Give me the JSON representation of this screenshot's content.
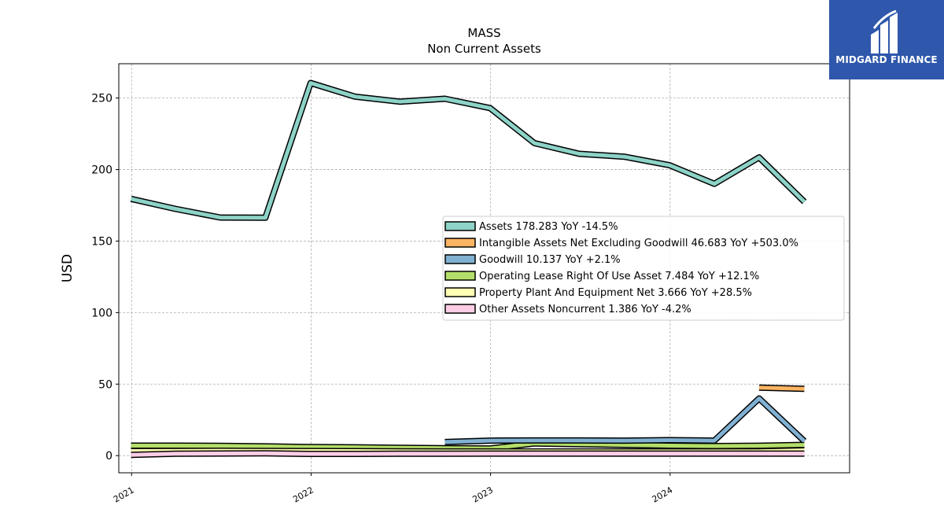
{
  "chart_data": {
    "type": "line",
    "title": "MASS",
    "subtitle": "Non Current  Assets",
    "ylabel": "USD",
    "xlabel": "",
    "ylim": [
      -12,
      274
    ],
    "xlim": [
      "2020-12-06",
      "2024-12-31"
    ],
    "y_ticks": [
      0,
      50,
      100,
      150,
      200,
      250
    ],
    "x_ticks": [
      "2021",
      "2022",
      "2023",
      "2024"
    ],
    "grid": true,
    "legend_position": "right-center",
    "x": [
      "2020-12-31",
      "2021-03-31",
      "2021-06-30",
      "2021-09-30",
      "2021-12-31",
      "2022-03-31",
      "2022-06-30",
      "2022-09-30",
      "2022-12-31",
      "2023-03-31",
      "2023-06-30",
      "2023-09-30",
      "2023-12-31",
      "2024-03-31",
      "2024-06-30",
      "2024-09-30"
    ],
    "series": [
      {
        "name": "Assets",
        "legend": "Assets  178.283 YoY -14.5%",
        "color": "#8dd3c7",
        "values": [
          179.5,
          172.5,
          166.5,
          166.3,
          260.5,
          251.0,
          247.5,
          249.5,
          243.0,
          218.5,
          211.0,
          209.0,
          203.0,
          190.0,
          208.5,
          177.5
        ]
      },
      {
        "name": "Intangible Assets Net Excluding Goodwill",
        "legend": "Intangible Assets Net Excluding Goodwill  46.683 YoY +503.0%",
        "color": "#fdb462",
        "values": [
          null,
          null,
          null,
          null,
          null,
          null,
          null,
          null,
          null,
          null,
          null,
          null,
          null,
          null,
          47.5,
          46.7
        ]
      },
      {
        "name": "Goodwill",
        "legend": "Goodwill  10.137 YoY +2.1%",
        "color": "#80b1d3",
        "values": [
          null,
          null,
          null,
          null,
          null,
          null,
          null,
          9.5,
          10.5,
          10.6,
          10.6,
          10.5,
          10.8,
          10.5,
          40.0,
          10.1
        ]
      },
      {
        "name": "Operating Lease Right Of Use Asset",
        "legend": "Operating Lease Right Of Use Asset  7.484 YoY +12.1%",
        "color": "#b3de69",
        "values": [
          7.0,
          7.0,
          6.8,
          6.5,
          6.0,
          5.8,
          5.5,
          5.2,
          5.0,
          8.5,
          8.0,
          7.5,
          7.0,
          6.7,
          6.9,
          7.5
        ]
      },
      {
        "name": "Property Plant And Equipment Net",
        "legend": "Property Plant And Equipment Net  3.666 YoY +28.5%",
        "color": "#ffffb3",
        "values": [
          3.2,
          3.3,
          3.4,
          3.3,
          3.2,
          3.1,
          3.0,
          2.9,
          2.9,
          2.9,
          2.9,
          2.9,
          2.9,
          2.9,
          3.0,
          3.7
        ]
      },
      {
        "name": "Other Assets Noncurrent",
        "legend": "Other Assets Noncurrent  1.386 YoY -4.2%",
        "color": "#fccde5",
        "values": [
          0.5,
          1.3,
          1.5,
          1.6,
          1.2,
          1.2,
          1.3,
          1.3,
          1.4,
          1.4,
          1.4,
          1.4,
          1.4,
          1.4,
          1.4,
          1.4
        ]
      }
    ]
  },
  "watermark": {
    "brand": "MIDGARD FINANCE",
    "background": "#2f57ab"
  }
}
